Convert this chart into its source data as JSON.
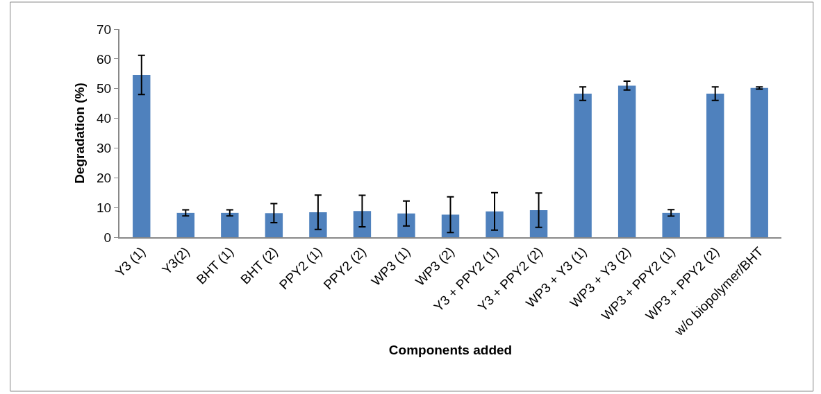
{
  "chart_data": {
    "type": "bar",
    "xlabel": "Components added",
    "ylabel": "Degradation (%)",
    "categories": [
      "Y3 (1)",
      "Y3(2)",
      "BHT (1)",
      "BHT (2)",
      "PPY2 (1)",
      "PPY2 (2)",
      "WP3 (1)",
      "WP3 (2)",
      "Y3 + PPY2 (1)",
      "Y3 + PPY2 (2)",
      "WP3 + Y3 (1)",
      "WP3 + Y3 (2)",
      "WP3 + PPY2 (1)",
      "WP3 + PPY2 (2)",
      "w/o biopolymer/BHT"
    ],
    "values": [
      54.6,
      8.2,
      8.2,
      8.1,
      8.4,
      8.8,
      8.0,
      7.6,
      8.7,
      9.1,
      48.3,
      51.0,
      8.2,
      48.3,
      50.2
    ],
    "errors": [
      6.6,
      1.0,
      1.0,
      3.2,
      5.8,
      5.3,
      4.2,
      6.0,
      6.3,
      5.8,
      2.3,
      1.5,
      1.1,
      2.3,
      0.4
    ],
    "color": "#4f81bd",
    "ylim": [
      0,
      70
    ],
    "yticks": [
      0,
      10,
      20,
      30,
      40,
      50,
      60,
      70
    ],
    "grid": false,
    "legend": false
  }
}
